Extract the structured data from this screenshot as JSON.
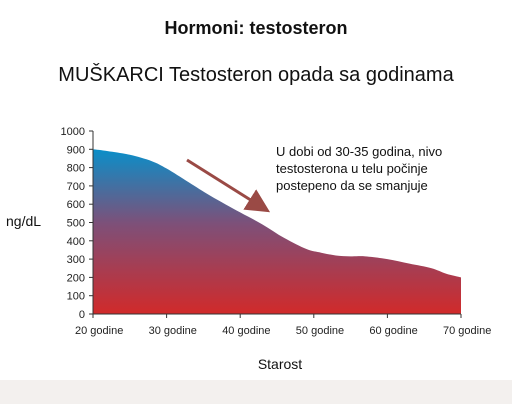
{
  "header": {
    "title": "Hormoni: testosteron",
    "subtitle": "MUŠKARCI Testosteron opada sa godinama"
  },
  "chart_data": {
    "type": "area",
    "title": "MUŠKARCI Testosteron opada sa godinama",
    "xlabel": "Starost",
    "ylabel": "ng/dL",
    "xlim": [
      20,
      70
    ],
    "ylim": [
      0,
      1000
    ],
    "y_ticks": [
      "0",
      "100",
      "200",
      "300",
      "400",
      "500",
      "600",
      "700",
      "800",
      "900",
      "1000"
    ],
    "x_ticks": [
      {
        "value": 20,
        "label": "20 godine"
      },
      {
        "value": 30,
        "label": "30 godine"
      },
      {
        "value": 40,
        "label": "40 godine"
      },
      {
        "value": 50,
        "label": "50 godine"
      },
      {
        "value": 60,
        "label": "60 godine"
      },
      {
        "value": 70,
        "label": "70 godine"
      }
    ],
    "series": [
      {
        "x": [
          20,
          22,
          25,
          28,
          30,
          33,
          36,
          40,
          43,
          46,
          49,
          51,
          53,
          55,
          57,
          60,
          63,
          66,
          68,
          70
        ],
        "values": [
          900,
          890,
          870,
          835,
          795,
          720,
          645,
          555,
          490,
          415,
          355,
          335,
          320,
          315,
          315,
          300,
          275,
          250,
          220,
          200
        ]
      }
    ],
    "annotation": "U dobi od 30-35 godina, nivo testosterona u telu počinje postepeno da se smanjuje",
    "colors": {
      "top": "#0a8fc9",
      "mid": "#7d5079",
      "bottom": "#d12a2a",
      "arrow": "#9a4a45"
    },
    "grid": false
  }
}
